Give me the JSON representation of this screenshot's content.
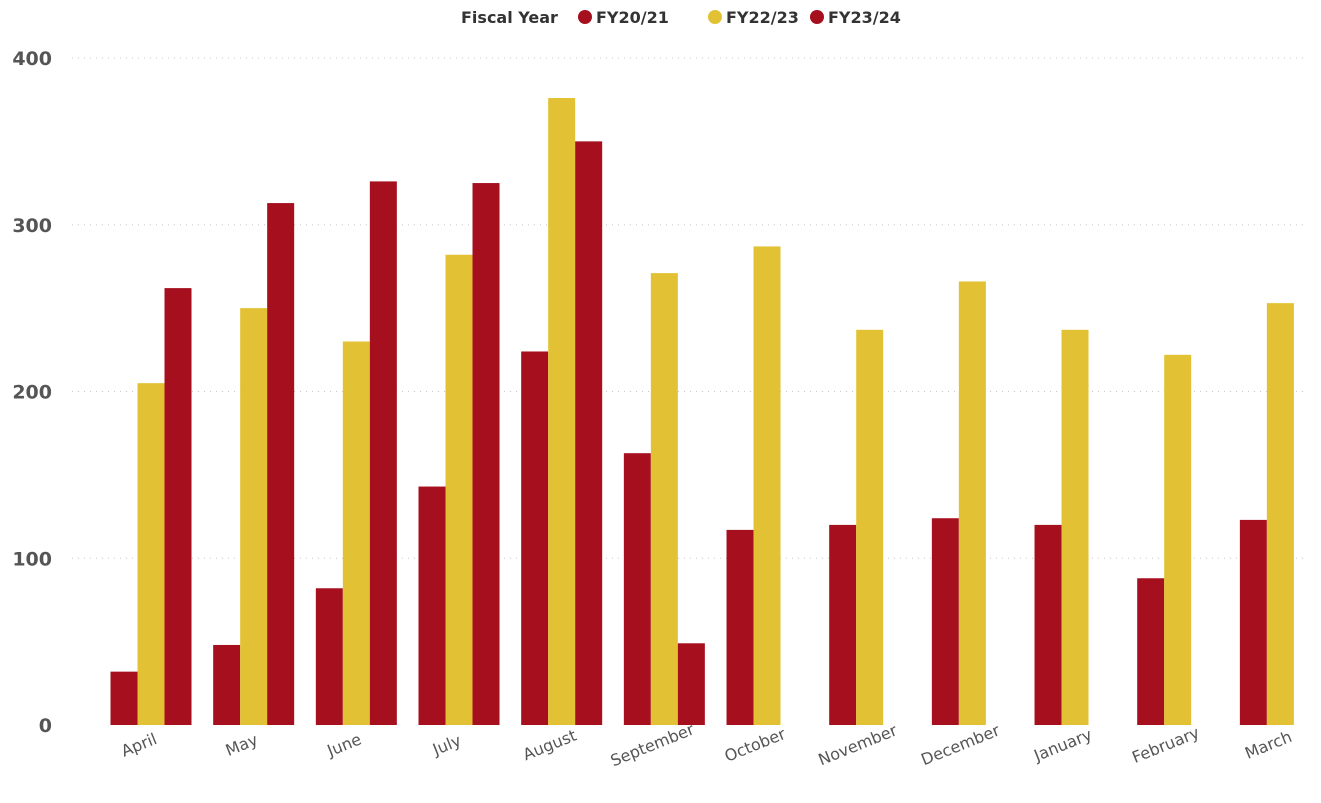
{
  "chart_data": {
    "type": "bar",
    "legend_title": "Fiscal Year",
    "legend_position": "top-center",
    "categories": [
      "April",
      "May",
      "June",
      "July",
      "August",
      "September",
      "October",
      "November",
      "December",
      "January",
      "February",
      "March"
    ],
    "series": [
      {
        "name": "FY20/21",
        "color": "#a50f1e",
        "values": [
          32,
          48,
          82,
          143,
          224,
          163,
          117,
          120,
          124,
          120,
          88,
          123
        ]
      },
      {
        "name": "FY22/23",
        "color": "#e2c234",
        "values": [
          205,
          250,
          230,
          282,
          376,
          271,
          287,
          237,
          266,
          237,
          222,
          253
        ]
      },
      {
        "name": "FY23/24",
        "color": "#a50f1e",
        "values": [
          262,
          313,
          326,
          325,
          350,
          49,
          null,
          null,
          null,
          null,
          null,
          null
        ]
      }
    ],
    "yticks": [
      0,
      100,
      200,
      300,
      400
    ],
    "ylim": [
      0,
      400
    ],
    "grid": true
  }
}
